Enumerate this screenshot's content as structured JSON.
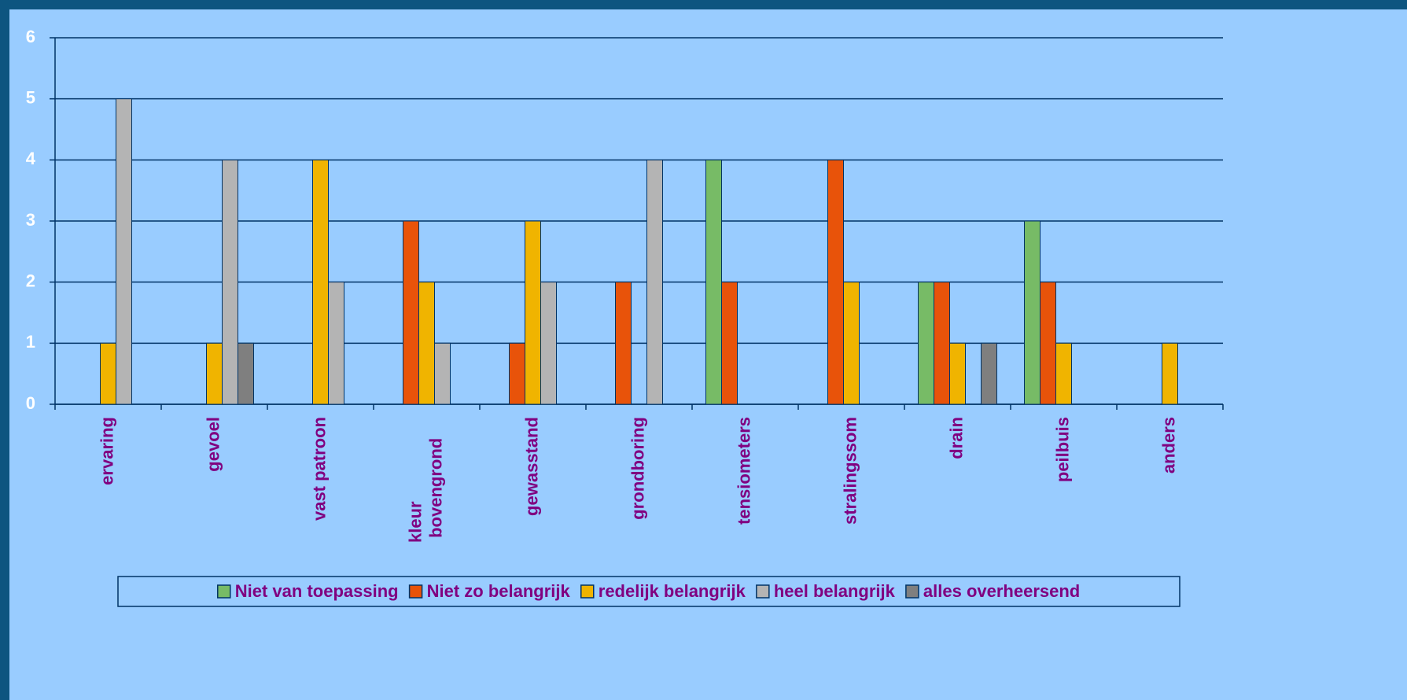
{
  "chart_data": {
    "type": "bar",
    "categories": [
      "ervaring",
      "gevoel",
      "vast patroon",
      "kleur bovengrond",
      "gewasstand",
      "grondboring",
      "tensiometers",
      "stralingssom",
      "drain",
      "peilbuis",
      "anders"
    ],
    "series": [
      {
        "name": "Niet van toepassing",
        "color": "#77bb66",
        "values": [
          0,
          0,
          0,
          0,
          0,
          0,
          4,
          0,
          2,
          3,
          0
        ]
      },
      {
        "name": "Niet zo belangrijk",
        "color": "#e8530a",
        "values": [
          0,
          0,
          0,
          3,
          1,
          2,
          2,
          4,
          2,
          2,
          0
        ]
      },
      {
        "name": "redelijk belangrijk",
        "color": "#f0b400",
        "values": [
          1,
          1,
          4,
          2,
          3,
          0,
          0,
          2,
          1,
          1,
          1
        ]
      },
      {
        "name": "heel belangrijk",
        "color": "#b4b4b4",
        "values": [
          5,
          4,
          2,
          1,
          2,
          4,
          0,
          0,
          0,
          0,
          0
        ]
      },
      {
        "name": "alles overheersend",
        "color": "#7f7f7f",
        "values": [
          0,
          1,
          0,
          0,
          0,
          0,
          0,
          0,
          1,
          0,
          0
        ]
      }
    ],
    "ylim": [
      0,
      6
    ],
    "yticks": [
      0,
      1,
      2,
      3,
      4,
      5,
      6
    ],
    "grid": true,
    "legend": "bottom"
  }
}
